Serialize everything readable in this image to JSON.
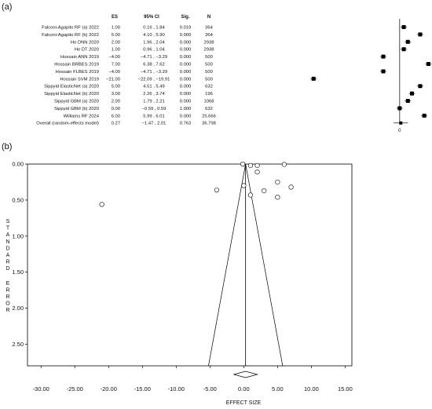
{
  "chart_data": [
    {
      "type": "forest",
      "panel_label": "(a)",
      "headers": [
        "ES",
        "95% CI",
        "Sig.",
        "N"
      ],
      "zero_label": "0",
      "xlim": [
        -22,
        7.5
      ],
      "rows": [
        {
          "study": "Falconi-Agapito RF (a) 2022",
          "es": 1.0,
          "es_text": "1.00",
          "ci_text": "0.16 , 1.84",
          "sig": "0.019",
          "n": "364"
        },
        {
          "study": "Falconi-Agapito RF (b) 2022",
          "es": 5.0,
          "es_text": "5.00",
          "ci_text": "4.10 , 5.90",
          "sig": "0.000",
          "n": "364"
        },
        {
          "study": "Ho DNN 2020",
          "es": 2.0,
          "es_text": "2.00",
          "ci_text": "1.96 , 2.04",
          "sig": "0.000",
          "n": "2938"
        },
        {
          "study": "Ho DT 2020",
          "es": 1.0,
          "es_text": "1.00",
          "ci_text": "0.96 , 1.04",
          "sig": "0.000",
          "n": "2938"
        },
        {
          "study": "Hossain ANN 2019",
          "es": -4.0,
          "es_text": "−4.00",
          "ci_text": "−4.71 , −3.29",
          "sig": "0.000",
          "n": "500"
        },
        {
          "study": "Hossain BRBES 2019",
          "es": 7.0,
          "es_text": "7.00",
          "ci_text": "6.38 , 7.62",
          "sig": "0.000",
          "n": "500"
        },
        {
          "study": "Hossain FLBES 2019",
          "es": -4.0,
          "es_text": "−4.00",
          "ci_text": "−4.71 , −3.29",
          "sig": "0.000",
          "n": "500"
        },
        {
          "study": "Hossain SVM 2019",
          "es": -21.0,
          "es_text": "−21.00",
          "ci_text": "−22.09 , −19.91",
          "sig": "0.000",
          "n": "500"
        },
        {
          "study": "Sippyid ElasticNet (a) 2020",
          "es": 5.0,
          "es_text": "5.00",
          "ci_text": "4.51 , 5.49",
          "sig": "0.000",
          "n": "632"
        },
        {
          "study": "Sippyid ElasticNet (b) 2020",
          "es": 3.0,
          "es_text": "3.00",
          "ci_text": "2.26 , 3.74",
          "sig": "0.000",
          "n": "196"
        },
        {
          "study": "Sippyid GBM (a) 2020",
          "es": 2.0,
          "es_text": "2.00",
          "ci_text": "1.79 , 2.21",
          "sig": "0.000",
          "n": "1068"
        },
        {
          "study": "Sippyid GBM (b) 2020",
          "es": 0.0,
          "es_text": "0.00",
          "ci_text": "−0.59 , 0.59",
          "sig": "1.000",
          "n": "632"
        },
        {
          "study": "Williams RF 2024",
          "es": 6.0,
          "es_text": "6.00",
          "ci_text": "5.99 , 6.01",
          "sig": "0.000",
          "n": "25.666"
        },
        {
          "study": "Overall (random-effects model)",
          "es": 0.27,
          "es_text": "0.27",
          "ci_text": "−1.47 , 2.01",
          "sig": "0.763",
          "n": "36.798",
          "overall": true
        }
      ]
    },
    {
      "type": "funnel",
      "panel_label": "(b)",
      "xlabel": "EFFECT SIZE",
      "ylabel": "STANDARD ERROR",
      "xlim": [
        -32,
        16
      ],
      "ylim": [
        2.8,
        0
      ],
      "xticks": [
        "-30.00",
        "-25.00",
        "-20.00",
        "-15.00",
        "-10.00",
        "-5.00",
        "0.00",
        "5.00",
        "10.00",
        "15.00"
      ],
      "xtick_values": [
        -30,
        -25,
        -20,
        -15,
        -10,
        -5,
        0,
        5,
        10,
        15
      ],
      "yticks": [
        "0.00",
        "0.50",
        "1.00",
        "1.50",
        "2.00",
        "2.50"
      ],
      "ytick_values": [
        0,
        0.5,
        1.0,
        1.5,
        2.0,
        2.5
      ],
      "pooled_effect": 0.27,
      "diamond_ci": [
        -1.47,
        2.01
      ],
      "points": [
        {
          "x": 1.0,
          "se": 0.02
        },
        {
          "x": 2.0,
          "se": 0.02
        },
        {
          "x": 6.0,
          "se": 0.005
        },
        {
          "x": 1.0,
          "se": 0.43
        },
        {
          "x": 5.0,
          "se": 0.46
        },
        {
          "x": 2.0,
          "se": 0.11
        },
        {
          "x": -4.0,
          "se": 0.36
        },
        {
          "x": 7.0,
          "se": 0.32
        },
        {
          "x": -21.0,
          "se": 0.56
        },
        {
          "x": 5.0,
          "se": 0.25
        },
        {
          "x": 3.0,
          "se": 0.37
        },
        {
          "x": 0.0,
          "se": 0.3
        },
        {
          "x": -0.14,
          "se": 0.0
        }
      ]
    }
  ]
}
